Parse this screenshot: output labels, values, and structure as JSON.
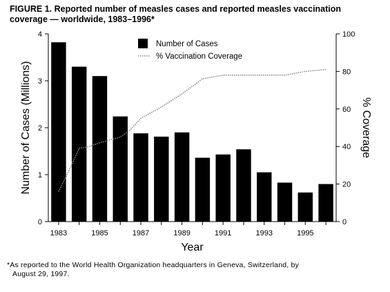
{
  "figure": {
    "title_prefix": "FIGURE 1.",
    "title_line1": "Reported number of measles cases and reported measles vaccination",
    "title_line2": "coverage — worldwide, 1983–1996*",
    "footnote_line1": "*As reported to the World Health Organization headquarters in Geneva, Switzerland, by",
    "footnote_line2": "August 29, 1997."
  },
  "chart_data": {
    "type": "bar",
    "xlabel": "Year",
    "ylabel": "Number of Cases (Millions)",
    "y2label": "% Coverage",
    "ylim": [
      0,
      4
    ],
    "y2lim": [
      0,
      100
    ],
    "yticks": [
      "0",
      "1",
      "2",
      "3",
      "4"
    ],
    "y2ticks": [
      "0",
      "20",
      "40",
      "60",
      "80",
      "100"
    ],
    "xtick_labels": [
      "1983",
      "1985",
      "1987",
      "1989",
      "1991",
      "1993",
      "1995"
    ],
    "legend_placement": "top-center",
    "grid": false,
    "categories": [
      "1983",
      "1984",
      "1985",
      "1986",
      "1987",
      "1988",
      "1989",
      "1990",
      "1991",
      "1992",
      "1993",
      "1994",
      "1995",
      "1996"
    ],
    "series": [
      {
        "name": "Number of Cases",
        "kind": "bar",
        "axis": "left",
        "color": "#000000",
        "values": [
          3.82,
          3.3,
          3.1,
          2.24,
          1.88,
          1.81,
          1.9,
          1.36,
          1.43,
          1.54,
          1.05,
          0.83,
          0.62,
          0.8
        ]
      },
      {
        "name": "% Vaccination Coverage",
        "kind": "line",
        "axis": "right",
        "style": "dotted",
        "color": "#888888",
        "x": [
          1983,
          1983.5,
          1984,
          1984.5,
          1985,
          1986,
          1986.5,
          1987,
          1988,
          1989,
          1990,
          1991,
          1992,
          1993,
          1994,
          1995,
          1996
        ],
        "values": [
          16,
          27,
          39,
          40,
          42,
          45,
          49,
          55,
          61,
          68,
          76,
          78,
          78,
          78,
          78,
          80,
          81
        ]
      }
    ]
  }
}
